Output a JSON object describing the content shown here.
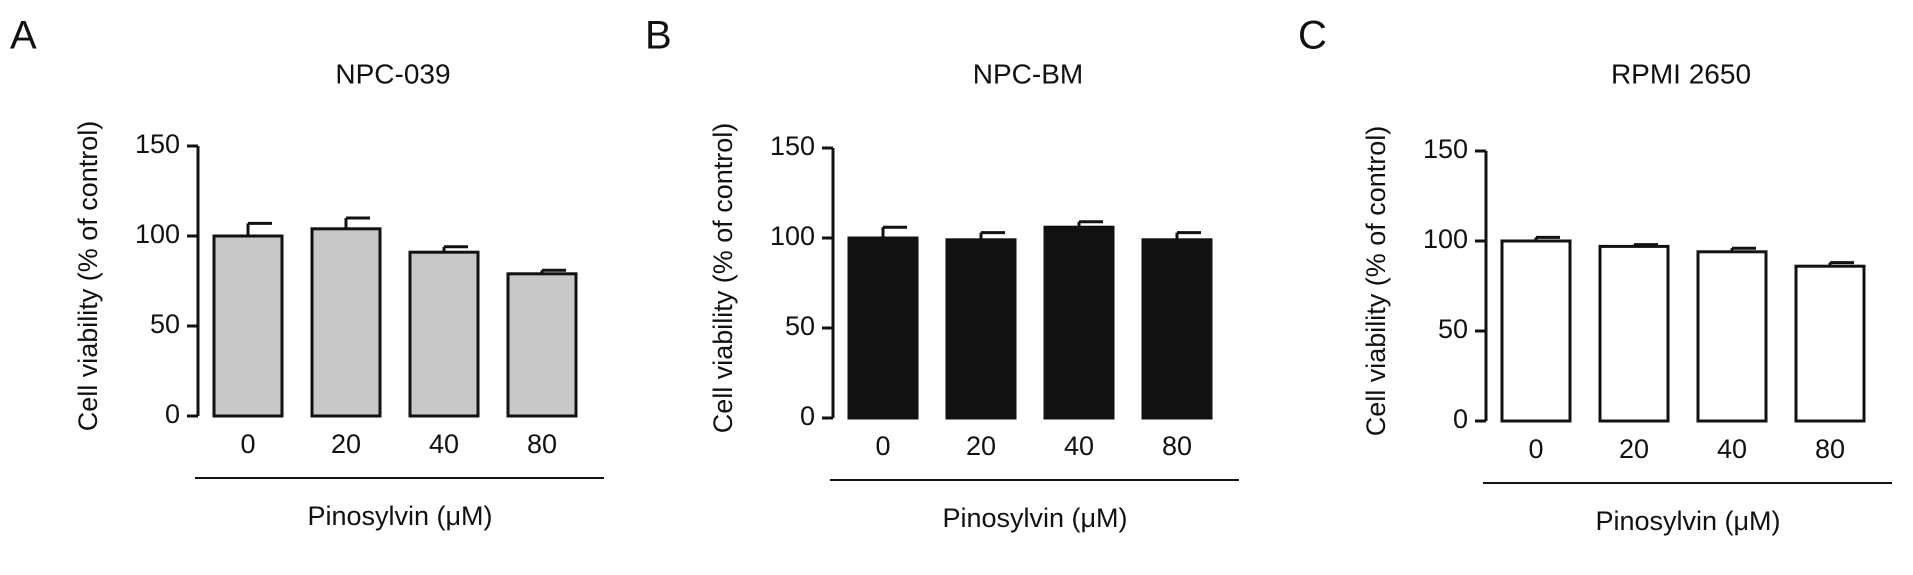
{
  "chart_data": [
    {
      "type": "bar",
      "panel_label": "A",
      "title": "NPC-039",
      "ylabel": "Cell viability (% of control)",
      "xlabel": "Pinosylvin (μM)",
      "categories": [
        "0",
        "20",
        "40",
        "80"
      ],
      "values": [
        100,
        104,
        91,
        79
      ],
      "errors": [
        7,
        6,
        3,
        2
      ],
      "color": "#c8c8c8",
      "ylim": [
        0,
        150
      ],
      "yticks": [
        0,
        50,
        100,
        150
      ]
    },
    {
      "type": "bar",
      "panel_label": "B",
      "title": "NPC-BM",
      "ylabel": "Cell viability (% of control)",
      "xlabel": "Pinosylvin (μM)",
      "categories": [
        "0",
        "20",
        "40",
        "80"
      ],
      "values": [
        100,
        99,
        106,
        99
      ],
      "errors": [
        6,
        4,
        3,
        4
      ],
      "color": "#111111",
      "ylim": [
        0,
        150
      ],
      "yticks": [
        0,
        50,
        100,
        150
      ]
    },
    {
      "type": "bar",
      "panel_label": "C",
      "title": "RPMI 2650",
      "ylabel": "Cell viability (% of control)",
      "xlabel": "Pinosylvin (μM)",
      "categories": [
        "0",
        "20",
        "40",
        "80"
      ],
      "values": [
        100,
        97,
        94,
        86
      ],
      "errors": [
        2,
        1,
        2,
        2
      ],
      "color": "#ffffff",
      "ylim": [
        0,
        150
      ],
      "yticks": [
        0,
        50,
        100,
        150
      ]
    }
  ]
}
